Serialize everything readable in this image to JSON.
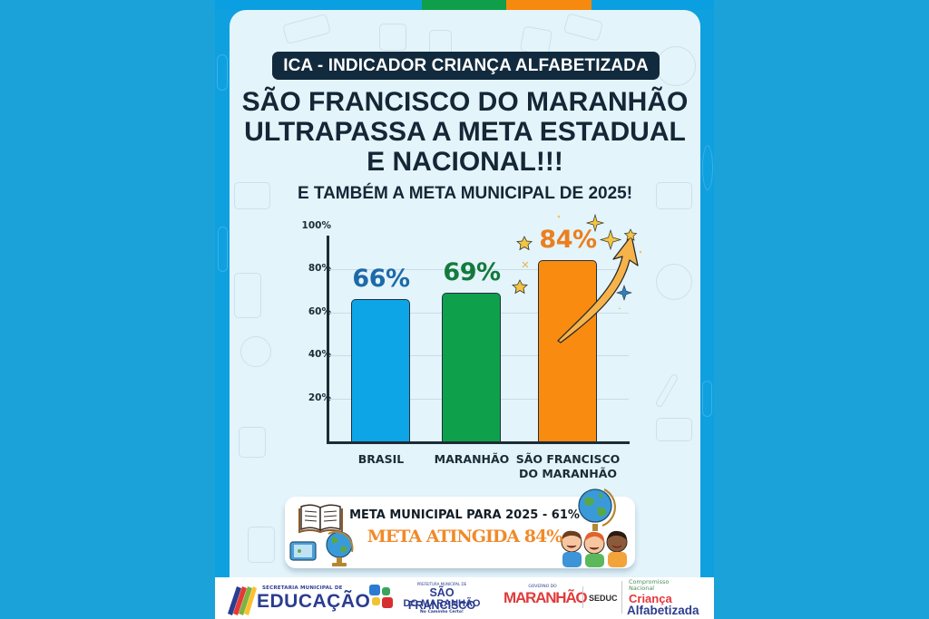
{
  "poster": {
    "badge": "ICA - INDICADOR CRIANÇA ALFABETIZADA",
    "headline_lines": [
      "SÃO FRANCISCO DO MARANHÃO",
      "ULTRAPASSA A META ESTADUAL",
      "E NACIONAL!!!"
    ],
    "subheadline": "E TAMBÉM A META MUNICIPAL DE 2025!",
    "colors": {
      "background": "#1aa2d9",
      "card": "#e4f4fb",
      "badge": "#122a3d",
      "brasil": "#0ea5e6",
      "maranhao": "#0fa04b",
      "sao_francisco": "#f88b10",
      "brasil_label": "#1d6aa8",
      "maranhao_label": "#137a3c",
      "sao_francisco_label": "#ea7f1f"
    }
  },
  "chart_data": {
    "type": "bar",
    "title": "ICA - INDICADOR CRIANÇA ALFABETIZADA",
    "categories": [
      "BRASIL",
      "MARANHÃO",
      "SÃO FRANCISCO DO MARANHÃO"
    ],
    "category_lines": [
      [
        "BRASIL"
      ],
      [
        "MARANHÃO"
      ],
      [
        "SÃO FRANCISCO",
        "DO MARANHÃO"
      ]
    ],
    "values": [
      66,
      69,
      84
    ],
    "value_labels": [
      "66%",
      "69%",
      "84%"
    ],
    "xlabel": "",
    "ylabel": "",
    "ylim": [
      0,
      100
    ],
    "yticks": [
      "100%",
      "80%",
      "60%",
      "40%",
      "20%"
    ],
    "grid": true,
    "legend": "none",
    "annotations": [
      "upward arrow with stars next to 84% bar"
    ]
  },
  "banner": {
    "line1": "META MUNICIPAL PARA 2025 - 61%",
    "line2": "META ATINGIDA 84%"
  },
  "footer": {
    "logos": [
      {
        "small": "SECRETARIA MUNICIPAL DE",
        "big": "EDUCAÇÃO"
      },
      {
        "small": "PREFEITURA MUNICIPAL DE",
        "line1": "SÃO FRANCISCO",
        "line2": "DO MARANHÃO",
        "tagline": "No Caminho Certo!"
      },
      {
        "small": "GOVERNO DO",
        "big": "MARANHÃO"
      },
      {
        "big": "SEDUC"
      },
      {
        "small1": "Compromisso",
        "small2": "Nacional",
        "line1": "Criança",
        "line2": "Alfabetizada"
      }
    ]
  }
}
